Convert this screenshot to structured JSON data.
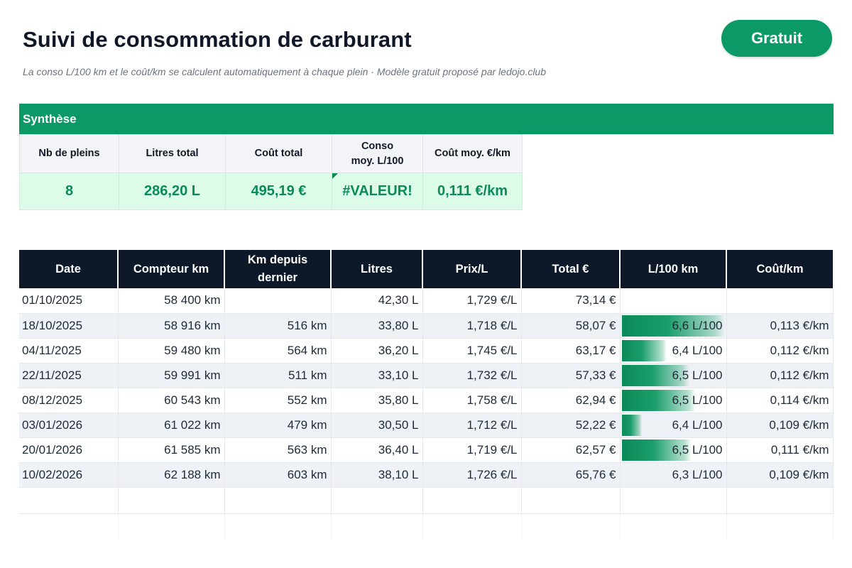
{
  "title": "Suivi de consommation de carburant",
  "subtitle": "La conso L/100 km et le coût/km se calculent automatiquement à chaque plein · Modèle gratuit proposé par ledojo.club",
  "badge": "Gratuit",
  "colors": {
    "accent": "#0b9a66",
    "header_dark": "#0d1829",
    "highlight_bg": "#dcfbe8",
    "value_text": "#0b8a5a"
  },
  "synthese": {
    "title": "Synthèse",
    "headers": [
      "Nb de pleins",
      "Litres total",
      "Coût total",
      "Conso moy. L/100",
      "Coût moy. €/km"
    ],
    "values": [
      "8",
      "286,20 L",
      "495,19 €",
      "#VALEUR!",
      "0,111 €/km"
    ]
  },
  "table": {
    "headers": [
      "Date",
      "Compteur km",
      "Km depuis dernier",
      "Litres",
      "Prix/L",
      "Total €",
      "L/100 km",
      "Coût/km"
    ],
    "rows": [
      {
        "date": "01/10/2025",
        "compteur": "58 400 km",
        "km": "",
        "litres": "42,30 L",
        "prix": "1,729 €/L",
        "total": "73,14 €",
        "l100": "",
        "bar": 0,
        "cout": ""
      },
      {
        "date": "18/10/2025",
        "compteur": "58 916 km",
        "km": "516 km",
        "litres": "33,80 L",
        "prix": "1,718 €/L",
        "total": "58,07 €",
        "l100": "6,6 L/100",
        "bar": 1.0,
        "cout": "0,113 €/km"
      },
      {
        "date": "04/11/2025",
        "compteur": "59 480 km",
        "km": "564 km",
        "litres": "36,20 L",
        "prix": "1,745 €/L",
        "total": "63,17 €",
        "l100": "6,4 L/100",
        "bar": 0.45,
        "cout": "0,112 €/km"
      },
      {
        "date": "22/11/2025",
        "compteur": "59 991 km",
        "km": "511 km",
        "litres": "33,10 L",
        "prix": "1,732 €/L",
        "total": "57,33 €",
        "l100": "6,5 L/100",
        "bar": 0.67,
        "cout": "0,112 €/km"
      },
      {
        "date": "08/12/2025",
        "compteur": "60 543 km",
        "km": "552 km",
        "litres": "35,80 L",
        "prix": "1,758 €/L",
        "total": "62,94 €",
        "l100": "6,5 L/100",
        "bar": 0.73,
        "cout": "0,114 €/km"
      },
      {
        "date": "03/01/2026",
        "compteur": "61 022 km",
        "km": "479 km",
        "litres": "30,50 L",
        "prix": "1,712 €/L",
        "total": "52,22 €",
        "l100": "6,4 L/100",
        "bar": 0.22,
        "cout": "0,109 €/km"
      },
      {
        "date": "20/01/2026",
        "compteur": "61 585 km",
        "km": "563 km",
        "litres": "36,40 L",
        "prix": "1,719 €/L",
        "total": "62,57 €",
        "l100": "6,5 L/100",
        "bar": 0.69,
        "cout": "0,111 €/km"
      },
      {
        "date": "10/02/2026",
        "compteur": "62 188 km",
        "km": "603 km",
        "litres": "38,10 L",
        "prix": "1,726 €/L",
        "total": "65,76 €",
        "l100": "6,3 L/100",
        "bar": 0,
        "cout": "0,109 €/km"
      }
    ]
  }
}
